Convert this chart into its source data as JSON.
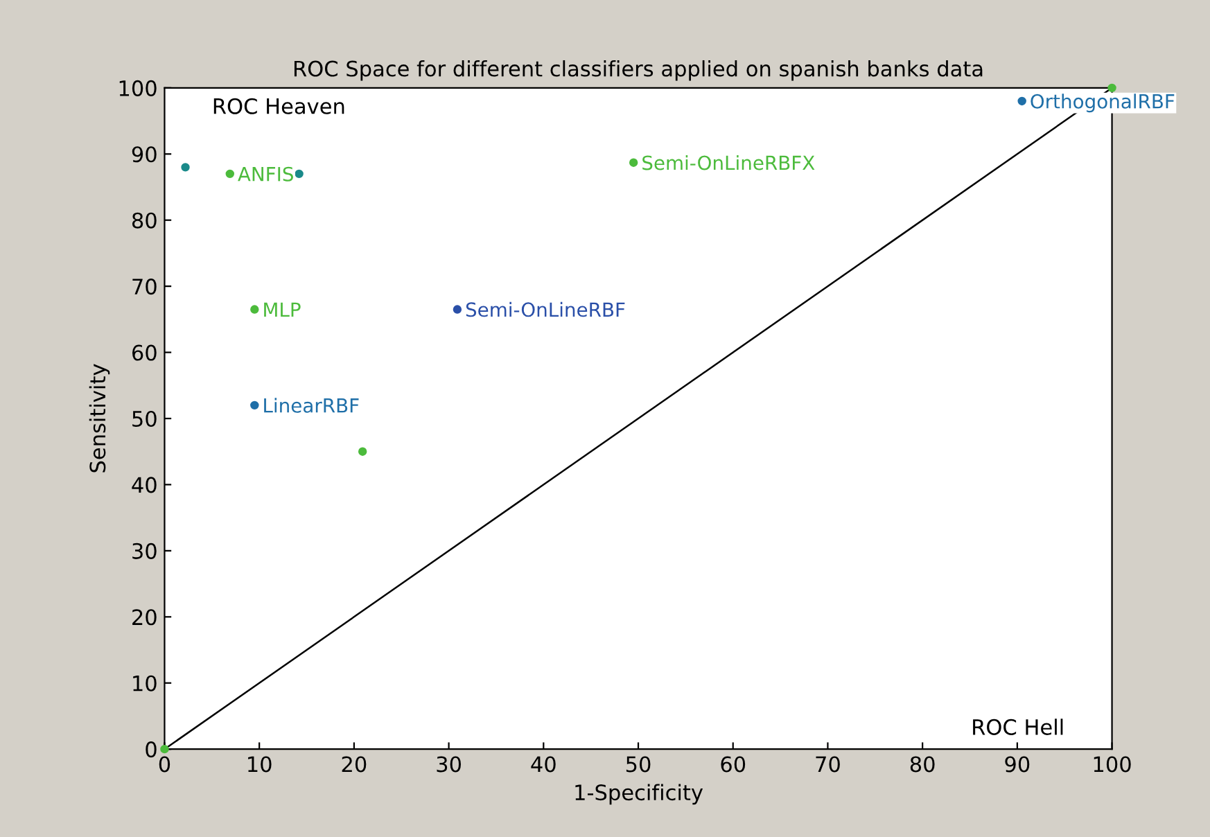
{
  "chart_data": {
    "type": "scatter",
    "title": "ROC Space for different classifiers applied on spanish banks data",
    "xlabel": "1-Specificity",
    "ylabel": "Sensitivity",
    "series": [
      {
        "type": "line",
        "color": "#000000",
        "x": [
          0,
          100
        ],
        "values": [
          0,
          100
        ],
        "marker": "none"
      },
      {
        "color": "#4cbb3c",
        "x": [
          0,
          100
        ],
        "values": [
          0,
          100
        ]
      },
      {
        "x": [
          2.2,
          6.9,
          14.2,
          9.5,
          9.5,
          20.9,
          30.9,
          49.5,
          90.5
        ],
        "values": [
          88,
          87,
          87,
          66.5,
          52,
          45,
          66.5,
          88.7,
          98
        ],
        "colors": [
          "#1a8a8a",
          "#4cbb3c",
          "#1a8a8a",
          "#4cbb3c",
          "#1f6fa8",
          "#4cbb3c",
          "#2a4fa8",
          "#4cbb3c",
          "#1f6fa8"
        ],
        "value_labels": [
          null,
          "ANFIS",
          null,
          "MLP",
          "LinearRBF",
          null,
          "Semi-OnLineRBF",
          "Semi-OnLineRBFX",
          "OrthogonalRBF"
        ]
      }
    ],
    "annotations": [
      "ROC Heaven",
      "ROC Hell"
    ],
    "xlim": [
      0,
      100
    ],
    "ylim": [
      0,
      100
    ],
    "xticks": [
      0,
      10,
      20,
      30,
      40,
      50,
      60,
      70,
      80,
      90,
      100
    ],
    "yticks": [
      0,
      10,
      20,
      30,
      40,
      50,
      60,
      70,
      80,
      90,
      100
    ],
    "grid": false,
    "legend": false,
    "marker": "circle"
  }
}
